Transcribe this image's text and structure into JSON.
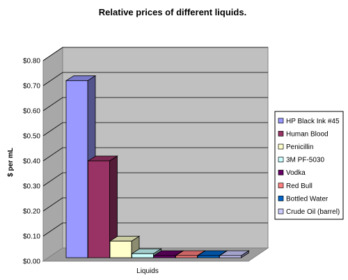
{
  "chart_data": {
    "type": "bar",
    "title": "Relative prices of different liquids.",
    "xlabel": "Liquids",
    "ylabel": "$ per mL",
    "ylim": [
      0,
      0.8
    ],
    "yticks": [
      "$0.00",
      "$0.10",
      "$0.20",
      "$0.30",
      "$0.40",
      "$0.50",
      "$0.60",
      "$0.70",
      "$0.80"
    ],
    "grid": true,
    "legend_position": "right",
    "series": [
      {
        "name": "HP Black Ink #45",
        "values": [
          0.72
        ],
        "color": "#9999ff"
      },
      {
        "name": "Human Blood",
        "values": [
          0.4
        ],
        "color": "#993366"
      },
      {
        "name": "Penicillin",
        "values": [
          0.08
        ],
        "color": "#ffffcc"
      },
      {
        "name": "3M PF-5030",
        "values": [
          0.03
        ],
        "color": "#ccffff"
      },
      {
        "name": "Vodka",
        "values": [
          0.012
        ],
        "color": "#660066"
      },
      {
        "name": "Red Bull",
        "values": [
          0.012
        ],
        "color": "#ff8080"
      },
      {
        "name": "Bottled Water",
        "values": [
          0.002
        ],
        "color": "#0066cc"
      },
      {
        "name": "Crude Oil (barrel)",
        "values": [
          0.0005
        ],
        "color": "#ccccff"
      }
    ]
  }
}
